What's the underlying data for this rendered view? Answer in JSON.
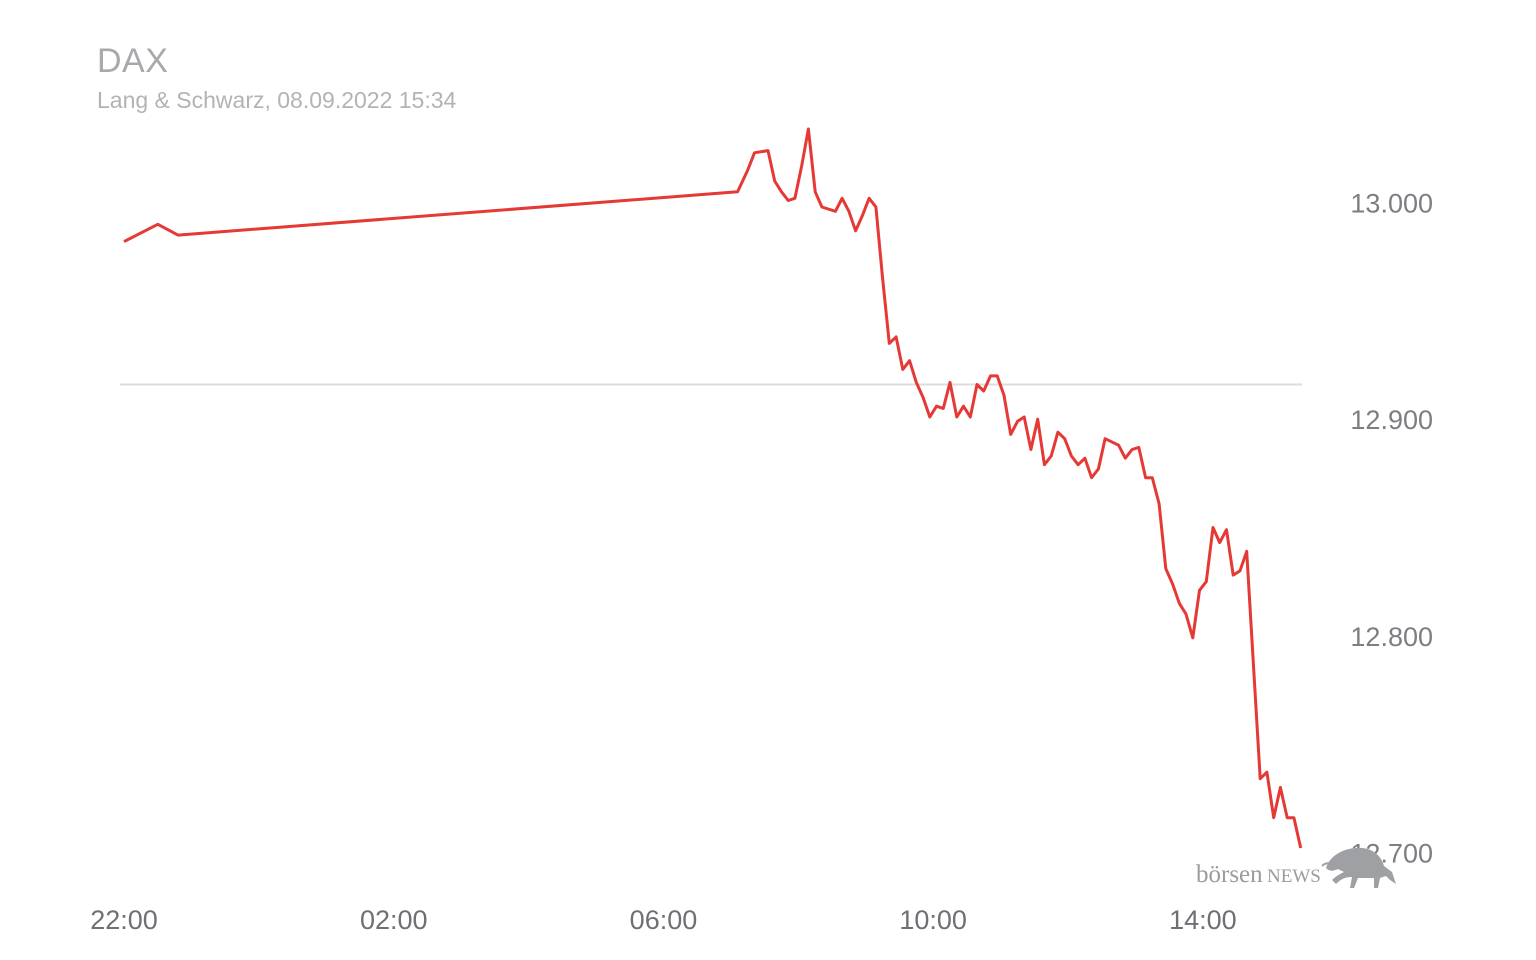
{
  "header": {
    "title": "DAX",
    "subtitle": "Lang & Schwarz, 08.09.2022 15:34"
  },
  "colors": {
    "line": "#e53935",
    "reference_line": "#dcdcdc",
    "text_muted": "#a9a9ad",
    "axis_text": "#7d7e82"
  },
  "brand": {
    "name_lower": "börsen",
    "name_upper": "NEWS",
    "icon": "bull-icon"
  },
  "chart_data": {
    "type": "line",
    "title": "DAX",
    "subtitle": "Lang & Schwarz, 08.09.2022 15:34",
    "xlabel": "",
    "ylabel": "",
    "x_ticks": [
      {
        "label": "22:00",
        "hour": 22.0
      },
      {
        "label": "02:00",
        "hour": 26.0
      },
      {
        "label": "06:00",
        "hour": 30.0
      },
      {
        "label": "10:00",
        "hour": 34.0
      },
      {
        "label": "14:00",
        "hour": 38.0
      }
    ],
    "y_ticks": [
      {
        "label": "13.000",
        "value": 13000
      },
      {
        "label": "12.900",
        "value": 12900
      },
      {
        "label": "12.800",
        "value": 12800
      },
      {
        "label": "12.700",
        "value": 12700
      }
    ],
    "ylim": [
      12678,
      13052
    ],
    "xlim_hours": [
      21.94,
      39.47
    ],
    "reference_line": {
      "value": 12916
    },
    "grid": false,
    "legend": "none",
    "series": [
      {
        "points": [
          [
            22.0,
            12982
          ],
          [
            22.5,
            12990
          ],
          [
            22.8,
            12985
          ],
          [
            31.1,
            13005
          ],
          [
            31.25,
            13015
          ],
          [
            31.35,
            13023
          ],
          [
            31.55,
            13024
          ],
          [
            31.65,
            13010
          ],
          [
            31.75,
            13005
          ],
          [
            31.85,
            13001
          ],
          [
            31.95,
            13002
          ],
          [
            32.05,
            13017
          ],
          [
            32.15,
            13034
          ],
          [
            32.25,
            13005
          ],
          [
            32.35,
            12998
          ],
          [
            32.55,
            12996
          ],
          [
            32.65,
            13002
          ],
          [
            32.75,
            12996
          ],
          [
            32.85,
            12987
          ],
          [
            32.95,
            12994
          ],
          [
            33.05,
            13002
          ],
          [
            33.15,
            12998
          ],
          [
            33.25,
            12965
          ],
          [
            33.35,
            12935
          ],
          [
            33.45,
            12938
          ],
          [
            33.55,
            12923
          ],
          [
            33.65,
            12927
          ],
          [
            33.75,
            12917
          ],
          [
            33.85,
            12910
          ],
          [
            33.95,
            12901
          ],
          [
            34.05,
            12906
          ],
          [
            34.15,
            12905
          ],
          [
            34.25,
            12917
          ],
          [
            34.35,
            12901
          ],
          [
            34.45,
            12906
          ],
          [
            34.55,
            12901
          ],
          [
            34.65,
            12916
          ],
          [
            34.75,
            12913
          ],
          [
            34.85,
            12920
          ],
          [
            34.95,
            12920
          ],
          [
            35.05,
            12911
          ],
          [
            35.15,
            12893
          ],
          [
            35.25,
            12899
          ],
          [
            35.35,
            12901
          ],
          [
            35.45,
            12886
          ],
          [
            35.55,
            12900
          ],
          [
            35.65,
            12879
          ],
          [
            35.75,
            12883
          ],
          [
            35.85,
            12894
          ],
          [
            35.95,
            12891
          ],
          [
            36.05,
            12883
          ],
          [
            36.15,
            12879
          ],
          [
            36.25,
            12882
          ],
          [
            36.35,
            12873
          ],
          [
            36.45,
            12877
          ],
          [
            36.55,
            12891
          ],
          [
            36.75,
            12888
          ],
          [
            36.85,
            12882
          ],
          [
            36.95,
            12886
          ],
          [
            37.05,
            12887
          ],
          [
            37.15,
            12873
          ],
          [
            37.25,
            12873
          ],
          [
            37.35,
            12861
          ],
          [
            37.45,
            12831
          ],
          [
            37.55,
            12824
          ],
          [
            37.65,
            12815
          ],
          [
            37.75,
            12810
          ],
          [
            37.85,
            12799
          ],
          [
            37.95,
            12821
          ],
          [
            38.05,
            12825
          ],
          [
            38.15,
            12850
          ],
          [
            38.25,
            12843
          ],
          [
            38.35,
            12849
          ],
          [
            38.45,
            12828
          ],
          [
            38.55,
            12830
          ],
          [
            38.65,
            12839
          ],
          [
            38.85,
            12734
          ],
          [
            38.95,
            12737
          ],
          [
            39.05,
            12716
          ],
          [
            39.15,
            12730
          ],
          [
            39.25,
            12716
          ],
          [
            39.35,
            12716
          ],
          [
            39.45,
            12702
          ]
        ]
      }
    ]
  }
}
